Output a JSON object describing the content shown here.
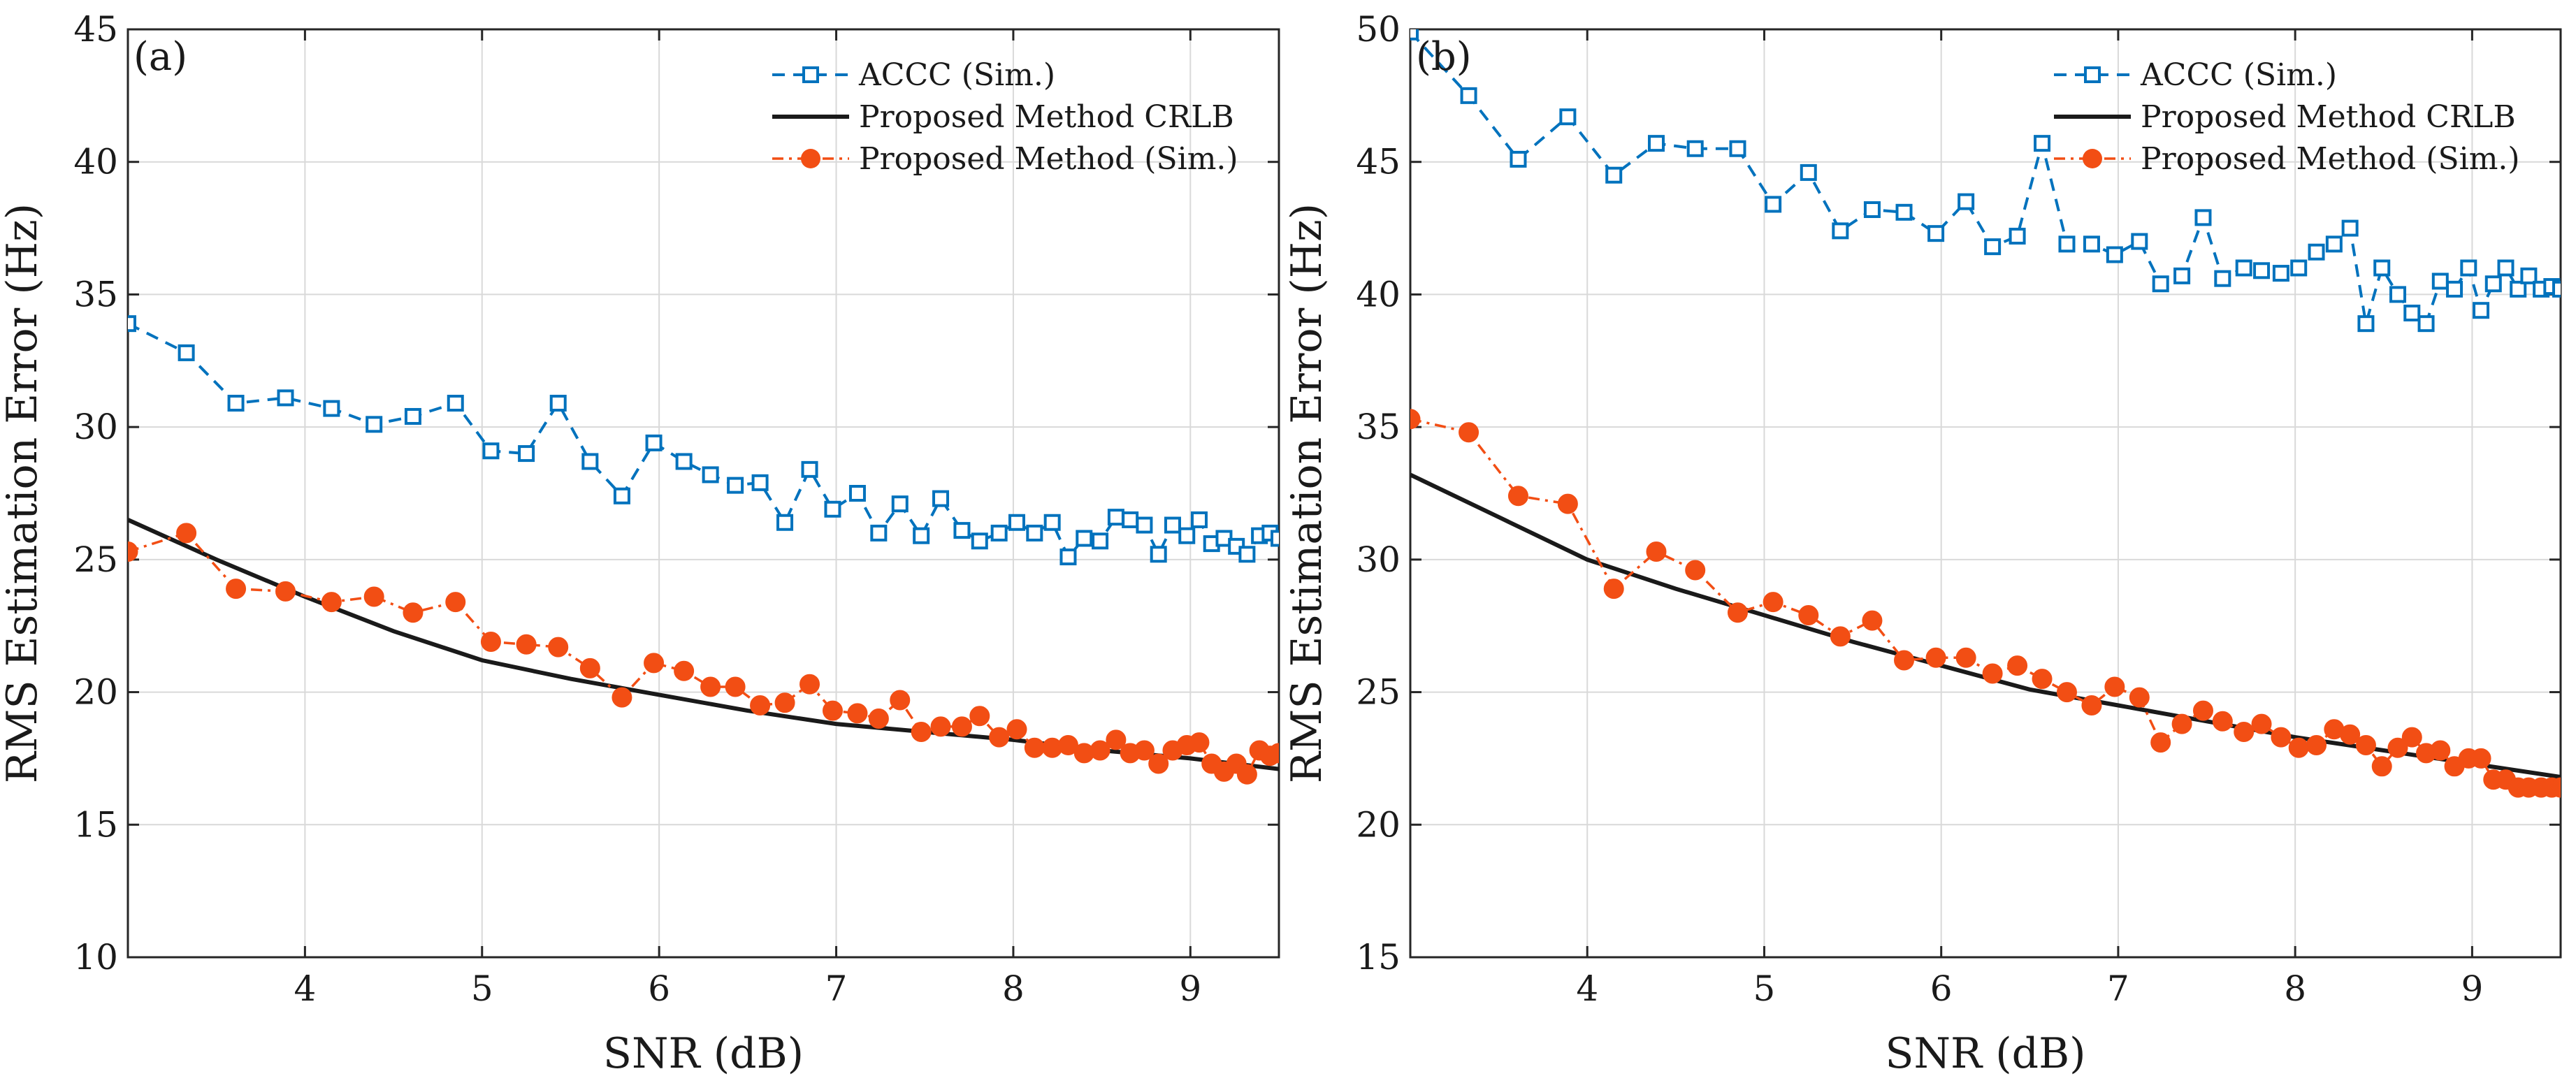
{
  "colors": {
    "accc": "#0072BD",
    "crlb": "#1a1a1a",
    "proposed": "#F24E14",
    "grid": "#d9d9d9",
    "axis": "#262626"
  },
  "chart_data": [
    {
      "type": "line",
      "panel_label": "(a)",
      "xlabel": "SNR (dB)",
      "ylabel": "RMS Estimation Error (Hz)",
      "xlim": [
        3,
        9.5
      ],
      "ylim": [
        10,
        45
      ],
      "xticks": [
        4,
        5,
        6,
        7,
        8,
        9
      ],
      "yticks": [
        10,
        15,
        20,
        25,
        30,
        35,
        40,
        45
      ],
      "grid": true,
      "legend_position": "top-right",
      "series": [
        {
          "name": "ACCC (Sim.)",
          "style": "dashed-square",
          "x": [
            3.0,
            3.33,
            3.61,
            3.89,
            4.15,
            4.39,
            4.61,
            4.85,
            5.05,
            5.25,
            5.43,
            5.61,
            5.79,
            5.97,
            6.14,
            6.29,
            6.43,
            6.57,
            6.71,
            6.85,
            6.98,
            7.12,
            7.24,
            7.36,
            7.48,
            7.59,
            7.71,
            7.81,
            7.92,
            8.02,
            8.12,
            8.22,
            8.31,
            8.4,
            8.49,
            8.58,
            8.66,
            8.74,
            8.82,
            8.9,
            8.98,
            9.05,
            9.12,
            9.19,
            9.26,
            9.32,
            9.39,
            9.45,
            9.5
          ],
          "values": [
            33.9,
            32.8,
            30.9,
            31.1,
            30.7,
            30.1,
            30.4,
            30.9,
            29.1,
            29.0,
            30.9,
            28.7,
            27.4,
            29.4,
            28.7,
            28.2,
            27.8,
            27.9,
            26.4,
            28.4,
            26.9,
            27.5,
            26.0,
            27.1,
            25.9,
            27.3,
            26.1,
            25.7,
            26.0,
            26.4,
            26.0,
            26.4,
            25.1,
            25.8,
            25.7,
            26.6,
            26.5,
            26.3,
            25.2,
            26.3,
            25.9,
            26.5,
            25.6,
            25.8,
            25.5,
            25.2,
            25.9,
            26.0,
            25.8
          ]
        },
        {
          "name": "Proposed Method CRLB",
          "style": "solid",
          "x": [
            3.0,
            3.5,
            4.0,
            4.5,
            5.0,
            5.5,
            6.0,
            6.5,
            7.0,
            7.5,
            8.0,
            8.5,
            9.0,
            9.5
          ],
          "values": [
            26.5,
            25.0,
            23.6,
            22.3,
            21.2,
            20.5,
            19.9,
            19.3,
            18.8,
            18.5,
            18.2,
            17.8,
            17.5,
            17.1
          ]
        },
        {
          "name": "Proposed Method (Sim.)",
          "style": "dashdot-circle",
          "x": [
            3.0,
            3.33,
            3.61,
            3.89,
            4.15,
            4.39,
            4.61,
            4.85,
            5.05,
            5.25,
            5.43,
            5.61,
            5.79,
            5.97,
            6.14,
            6.29,
            6.43,
            6.57,
            6.71,
            6.85,
            6.98,
            7.12,
            7.24,
            7.36,
            7.48,
            7.59,
            7.71,
            7.81,
            7.92,
            8.02,
            8.12,
            8.22,
            8.31,
            8.4,
            8.49,
            8.58,
            8.66,
            8.74,
            8.82,
            8.9,
            8.98,
            9.05,
            9.12,
            9.19,
            9.26,
            9.32,
            9.39,
            9.45,
            9.5
          ],
          "values": [
            25.3,
            26.0,
            23.9,
            23.8,
            23.4,
            23.6,
            23.0,
            23.4,
            21.9,
            21.8,
            21.7,
            20.9,
            19.8,
            21.1,
            20.8,
            20.2,
            20.2,
            19.5,
            19.6,
            20.3,
            19.3,
            19.2,
            19.0,
            19.7,
            18.5,
            18.7,
            18.7,
            19.1,
            18.3,
            18.6,
            17.9,
            17.9,
            18.0,
            17.7,
            17.8,
            18.2,
            17.7,
            17.8,
            17.3,
            17.8,
            18.0,
            18.1,
            17.3,
            17.0,
            17.3,
            16.9,
            17.8,
            17.6,
            17.7
          ]
        }
      ]
    },
    {
      "type": "line",
      "panel_label": "(b)",
      "xlabel": "SNR (dB)",
      "ylabel": "RMS Estimation Error (Hz)",
      "xlim": [
        3,
        9.5
      ],
      "ylim": [
        15,
        50
      ],
      "xticks": [
        4,
        5,
        6,
        7,
        8,
        9
      ],
      "yticks": [
        15,
        20,
        25,
        30,
        35,
        40,
        45,
        50
      ],
      "grid": true,
      "legend_position": "top-right",
      "series": [
        {
          "name": "ACCC (Sim.)",
          "style": "dashed-square",
          "x": [
            3.0,
            3.33,
            3.61,
            3.89,
            4.15,
            4.39,
            4.61,
            4.85,
            5.05,
            5.25,
            5.43,
            5.61,
            5.79,
            5.97,
            6.14,
            6.29,
            6.43,
            6.57,
            6.71,
            6.85,
            6.98,
            7.12,
            7.24,
            7.36,
            7.48,
            7.59,
            7.71,
            7.81,
            7.92,
            8.02,
            8.12,
            8.22,
            8.31,
            8.4,
            8.49,
            8.58,
            8.66,
            8.74,
            8.82,
            8.9,
            8.98,
            9.05,
            9.12,
            9.19,
            9.26,
            9.32,
            9.39,
            9.45,
            9.5
          ],
          "values": [
            49.9,
            47.5,
            45.1,
            46.7,
            44.5,
            45.7,
            45.5,
            45.5,
            43.4,
            44.6,
            42.4,
            43.2,
            43.1,
            42.3,
            43.5,
            41.8,
            42.2,
            45.7,
            41.9,
            41.9,
            41.5,
            42.0,
            40.4,
            40.7,
            42.9,
            40.6,
            41.0,
            40.9,
            40.8,
            41.0,
            41.6,
            41.9,
            42.5,
            38.9,
            41.0,
            40.0,
            39.3,
            38.9,
            40.5,
            40.2,
            41.0,
            39.4,
            40.4,
            41.0,
            40.2,
            40.7,
            40.2,
            40.3,
            40.2
          ]
        },
        {
          "name": "Proposed Method CRLB",
          "style": "solid",
          "x": [
            3.0,
            3.5,
            4.0,
            4.5,
            5.0,
            5.5,
            6.0,
            6.5,
            7.0,
            7.5,
            8.0,
            8.5,
            9.0,
            9.5
          ],
          "values": [
            33.2,
            31.6,
            30.0,
            28.9,
            27.9,
            26.9,
            26.0,
            25.1,
            24.5,
            23.9,
            23.3,
            22.8,
            22.3,
            21.8
          ]
        },
        {
          "name": "Proposed Method (Sim.)",
          "style": "dashdot-circle",
          "x": [
            3.0,
            3.33,
            3.61,
            3.89,
            4.15,
            4.39,
            4.61,
            4.85,
            5.05,
            5.25,
            5.43,
            5.61,
            5.79,
            5.97,
            6.14,
            6.29,
            6.43,
            6.57,
            6.71,
            6.85,
            6.98,
            7.12,
            7.24,
            7.36,
            7.48,
            7.59,
            7.71,
            7.81,
            7.92,
            8.02,
            8.12,
            8.22,
            8.31,
            8.4,
            8.49,
            8.58,
            8.66,
            8.74,
            8.82,
            8.9,
            8.98,
            9.05,
            9.12,
            9.19,
            9.26,
            9.32,
            9.39,
            9.45,
            9.5
          ],
          "values": [
            35.3,
            34.8,
            32.4,
            32.1,
            28.9,
            30.3,
            29.6,
            28.0,
            28.4,
            27.9,
            27.1,
            27.7,
            26.2,
            26.3,
            26.3,
            25.7,
            26.0,
            25.5,
            25.0,
            24.5,
            25.2,
            24.8,
            23.1,
            23.8,
            24.3,
            23.9,
            23.5,
            23.8,
            23.3,
            22.9,
            23.0,
            23.6,
            23.4,
            23.0,
            22.2,
            22.9,
            23.3,
            22.7,
            22.8,
            22.2,
            22.5,
            22.5,
            21.7,
            21.7,
            21.4,
            21.4,
            21.4,
            21.4,
            21.4
          ]
        }
      ]
    }
  ]
}
